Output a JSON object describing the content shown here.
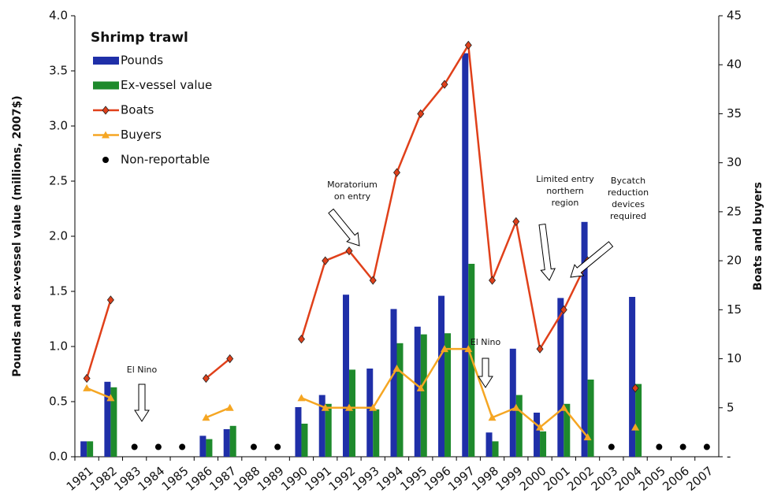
{
  "chart_data": {
    "type": "bar",
    "legend_title": "Shrimp trawl",
    "ylabel": "Pounds and ex-vessel value (millions, 2007$)",
    "y2label": "Boats and buyers",
    "categories": [
      "1981",
      "1982",
      "1983",
      "1984",
      "1985",
      "1986",
      "1987",
      "1988",
      "1989",
      "1990",
      "1991",
      "1992",
      "1993",
      "1994",
      "1995",
      "1996",
      "1997",
      "1998",
      "1999",
      "2000",
      "2001",
      "2002",
      "2003",
      "2004",
      "2005",
      "2006",
      "2007"
    ],
    "ylim": [
      0,
      4
    ],
    "yticks": [
      {
        "value": 0,
        "label": "0.0"
      },
      {
        "value": 0.5,
        "label": "0.5"
      },
      {
        "value": 1,
        "label": "1.0"
      },
      {
        "value": 1.5,
        "label": "1.5"
      },
      {
        "value": 2,
        "label": "2.0"
      },
      {
        "value": 2.5,
        "label": "2.5"
      },
      {
        "value": 3,
        "label": "3.0"
      },
      {
        "value": 3.5,
        "label": "3.5"
      },
      {
        "value": 4,
        "label": "4.0"
      }
    ],
    "y2lim": [
      0,
      45
    ],
    "y2ticks": [
      {
        "value": 0,
        "label": "-"
      },
      5,
      10,
      15,
      20,
      25,
      30,
      35,
      40,
      45
    ],
    "series": [
      {
        "name": "Pounds",
        "type": "bar",
        "color": "#1f2fa8",
        "values": [
          0.14,
          0.68,
          null,
          null,
          null,
          0.19,
          0.25,
          null,
          null,
          0.45,
          0.56,
          1.47,
          0.8,
          1.34,
          1.18,
          1.46,
          3.66,
          0.22,
          0.98,
          0.4,
          1.44,
          2.13,
          null,
          1.45,
          null,
          null,
          null
        ]
      },
      {
        "name": "Ex-vessel value",
        "type": "bar",
        "color": "#1e8a2c",
        "values": [
          0.14,
          0.63,
          null,
          null,
          null,
          0.16,
          0.28,
          null,
          null,
          0.3,
          0.48,
          0.79,
          0.43,
          1.03,
          1.11,
          1.12,
          1.75,
          0.14,
          0.56,
          0.23,
          0.48,
          0.7,
          null,
          0.66,
          null,
          null,
          null
        ]
      },
      {
        "name": "Boats",
        "type": "line",
        "marker": "diamond",
        "axis": "y2",
        "color": "#e0401a",
        "values": [
          8,
          16,
          null,
          null,
          null,
          8,
          10,
          null,
          null,
          12,
          20,
          21,
          18,
          29,
          35,
          38,
          42,
          18,
          24,
          11,
          15,
          20,
          null,
          7,
          null,
          null,
          null
        ]
      },
      {
        "name": "Buyers",
        "type": "line",
        "marker": "triangle",
        "axis": "y2",
        "color": "#f5a623",
        "values": [
          7,
          6,
          null,
          null,
          null,
          4,
          5,
          null,
          null,
          6,
          5,
          5,
          5,
          9,
          7,
          11,
          11,
          4,
          5,
          3,
          5,
          2,
          null,
          3,
          null,
          null,
          null
        ]
      },
      {
        "name": "Non-reportable",
        "type": "scatter",
        "axis": "y2",
        "color": "#000000",
        "values": [
          null,
          null,
          1,
          1,
          1,
          null,
          null,
          1,
          1,
          null,
          null,
          null,
          null,
          null,
          null,
          null,
          null,
          null,
          null,
          null,
          null,
          null,
          1,
          null,
          1,
          1,
          1
        ]
      }
    ],
    "annotations": [
      {
        "lines": [
          "El Nino"
        ]
      },
      {
        "lines": [
          "Moratorium",
          "on entry"
        ]
      },
      {
        "lines": [
          "El Nino"
        ]
      },
      {
        "lines": [
          "Limited entry",
          "northern",
          "region"
        ]
      },
      {
        "lines": [
          "Bycatch",
          "reduction",
          "devices",
          "required"
        ]
      }
    ]
  }
}
